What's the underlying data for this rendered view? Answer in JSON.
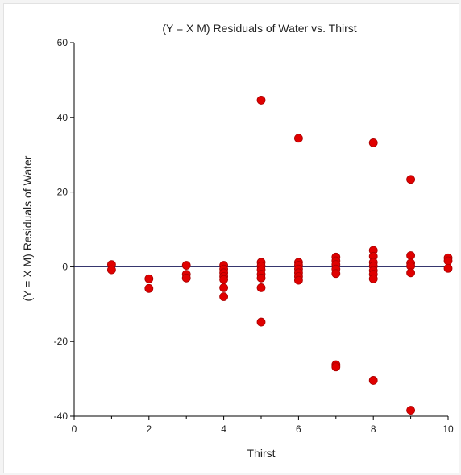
{
  "chart_data": {
    "type": "scatter",
    "title": "(Y = X M) Residuals of Water vs. Thirst",
    "xlabel": "Thirst",
    "ylabel": "(Y = X M) Residuals of Water",
    "xlim": [
      0,
      10
    ],
    "ylim": [
      -40,
      60
    ],
    "xticks": [
      0,
      2,
      4,
      6,
      8,
      10
    ],
    "yticks": [
      -40,
      -20,
      0,
      20,
      40,
      60
    ],
    "reference_line_y": 0,
    "grid": false,
    "legend": "none",
    "marker_color": "#e00000",
    "marker_edge": "#a80000",
    "points": [
      {
        "x": 1,
        "y": 0.6
      },
      {
        "x": 1,
        "y": -0.8
      },
      {
        "x": 2,
        "y": -3.2
      },
      {
        "x": 2,
        "y": -5.8
      },
      {
        "x": 3,
        "y": 0.4
      },
      {
        "x": 3,
        "y": -2.0
      },
      {
        "x": 3,
        "y": -3.0
      },
      {
        "x": 4,
        "y": 0.4
      },
      {
        "x": 4,
        "y": -0.6
      },
      {
        "x": 4,
        "y": -1.6
      },
      {
        "x": 4,
        "y": -2.6
      },
      {
        "x": 4,
        "y": -3.4
      },
      {
        "x": 4,
        "y": -5.6
      },
      {
        "x": 4,
        "y": -8.0
      },
      {
        "x": 5,
        "y": 44.6
      },
      {
        "x": 5,
        "y": 1.2
      },
      {
        "x": 5,
        "y": 0.2
      },
      {
        "x": 5,
        "y": -0.8
      },
      {
        "x": 5,
        "y": -2.0
      },
      {
        "x": 5,
        "y": -3.0
      },
      {
        "x": 5,
        "y": -5.6
      },
      {
        "x": 5,
        "y": -14.8
      },
      {
        "x": 6,
        "y": 34.4
      },
      {
        "x": 6,
        "y": 1.2
      },
      {
        "x": 6,
        "y": 0.4
      },
      {
        "x": 6,
        "y": -0.6
      },
      {
        "x": 6,
        "y": -1.6
      },
      {
        "x": 6,
        "y": -2.6
      },
      {
        "x": 6,
        "y": -3.6
      },
      {
        "x": 7,
        "y": 2.6
      },
      {
        "x": 7,
        "y": 1.6
      },
      {
        "x": 7,
        "y": 0.6
      },
      {
        "x": 7,
        "y": -0.6
      },
      {
        "x": 7,
        "y": -1.8
      },
      {
        "x": 7,
        "y": -26.2
      },
      {
        "x": 7,
        "y": -26.8
      },
      {
        "x": 8,
        "y": 33.2
      },
      {
        "x": 8,
        "y": 4.4
      },
      {
        "x": 8,
        "y": 2.8
      },
      {
        "x": 8,
        "y": 1.2
      },
      {
        "x": 8,
        "y": 0.2
      },
      {
        "x": 8,
        "y": -1.0
      },
      {
        "x": 8,
        "y": -2.0
      },
      {
        "x": 8,
        "y": -3.2
      },
      {
        "x": 8,
        "y": -30.4
      },
      {
        "x": 9,
        "y": 23.4
      },
      {
        "x": 9,
        "y": 3.0
      },
      {
        "x": 9,
        "y": 1.0
      },
      {
        "x": 9,
        "y": 0.2
      },
      {
        "x": 9,
        "y": -1.6
      },
      {
        "x": 9,
        "y": -38.4
      },
      {
        "x": 10,
        "y": 2.4
      },
      {
        "x": 10,
        "y": 1.6
      },
      {
        "x": 10,
        "y": -0.4
      }
    ]
  }
}
